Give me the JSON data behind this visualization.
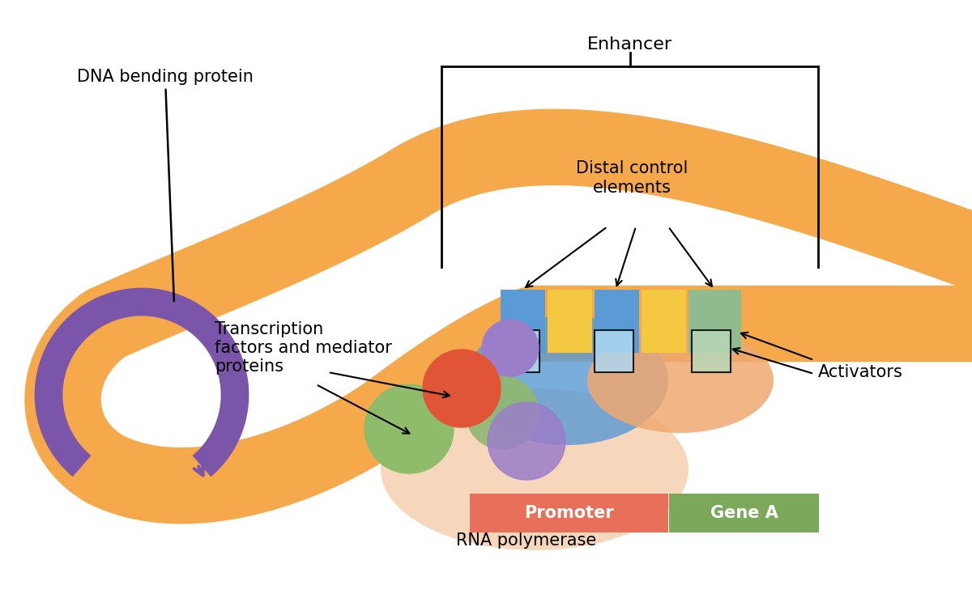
{
  "bg_color": "#ffffff",
  "dna_color": "#F5A94A",
  "purple_arc_color": "#7B55AA",
  "promoter_color": "#E8705A",
  "gene_a_color": "#7BA85B",
  "rna_pol_color": "#F5D0B0",
  "blue_blob_color": "#5B9BD5",
  "orange_blob_color": "#F0A870",
  "blue_enh_color": "#5B9BD5",
  "yellow_enh_color": "#F5C842",
  "green_enh_color": "#8FBC8F",
  "purple_ball_color": "#9B7EC8",
  "red_ball_color": "#E05535",
  "green_ball1_color": "#8FBC6A",
  "green_ball2_color": "#90B870",
  "purple_ball2_color": "#9B7EC8",
  "labels": {
    "dna_bending": "DNA bending protein",
    "transcription": "Transcription\nfactors and mediator\nproteins",
    "enhancer": "Enhancer",
    "distal": "Distal control\nelements",
    "promoter": "Promoter",
    "gene_a": "Gene A",
    "rna_pol": "RNA polymerase",
    "activators": "Activators"
  },
  "font_size": 15
}
